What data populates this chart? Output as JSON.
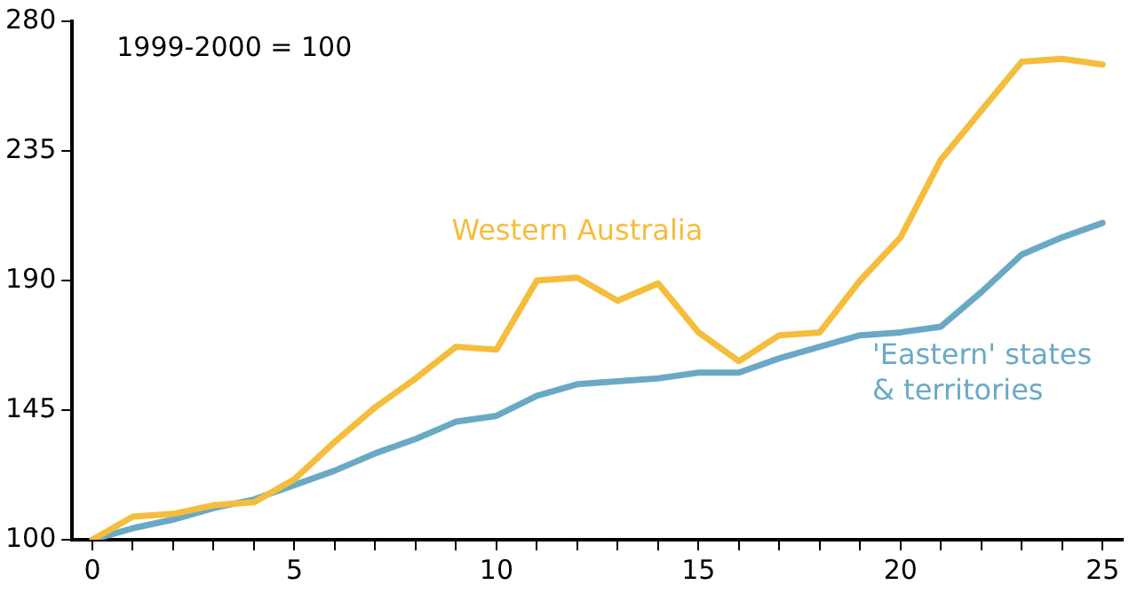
{
  "chart_data": {
    "type": "line",
    "annotations": [
      "1999-2000 = 100"
    ],
    "x": [
      0,
      1,
      2,
      3,
      4,
      5,
      6,
      7,
      8,
      9,
      10,
      11,
      12,
      13,
      14,
      15,
      16,
      17,
      18,
      19,
      20,
      21,
      22,
      23,
      24,
      25
    ],
    "series": [
      {
        "name": "Western Australia",
        "color": "#f5bd3c",
        "values": [
          100,
          108,
          109,
          112,
          113,
          121,
          134,
          146,
          156,
          167,
          166,
          190,
          191,
          183,
          189,
          172,
          162,
          171,
          172,
          190,
          205,
          232,
          249,
          266,
          267,
          265
        ]
      },
      {
        "name": "'Eastern' states & territories",
        "color": "#6aa9c6",
        "values": [
          100,
          104,
          107,
          111,
          114,
          119,
          124,
          130,
          135,
          141,
          143,
          150,
          154,
          155,
          156,
          158,
          158,
          163,
          167,
          171,
          172,
          174,
          186,
          199,
          205,
          210
        ]
      }
    ],
    "xlim": [
      -0.5,
      25.5
    ],
    "xticks": [
      0,
      {
        "value": 1,
        "label": null
      },
      {
        "value": 2,
        "label": null
      },
      {
        "value": 3,
        "label": null
      },
      {
        "value": 4,
        "label": null
      },
      5,
      {
        "value": 6,
        "label": null
      },
      {
        "value": 7,
        "label": null
      },
      {
        "value": 8,
        "label": null
      },
      {
        "value": 9,
        "label": null
      },
      10,
      {
        "value": 11,
        "label": null
      },
      {
        "value": 12,
        "label": null
      },
      {
        "value": 13,
        "label": null
      },
      {
        "value": 14,
        "label": null
      },
      15,
      {
        "value": 16,
        "label": null
      },
      {
        "value": 17,
        "label": null
      },
      {
        "value": 18,
        "label": null
      },
      {
        "value": 19,
        "label": null
      },
      20,
      {
        "value": 21,
        "label": null
      },
      {
        "value": 22,
        "label": null
      },
      {
        "value": 23,
        "label": null
      },
      {
        "value": 24,
        "label": null
      },
      25
    ],
    "ylim": [
      100,
      280
    ],
    "yticks": [
      100,
      145,
      190,
      235,
      280
    ],
    "grid": false,
    "legend": false,
    "marker": "none",
    "line_style": "solid"
  }
}
